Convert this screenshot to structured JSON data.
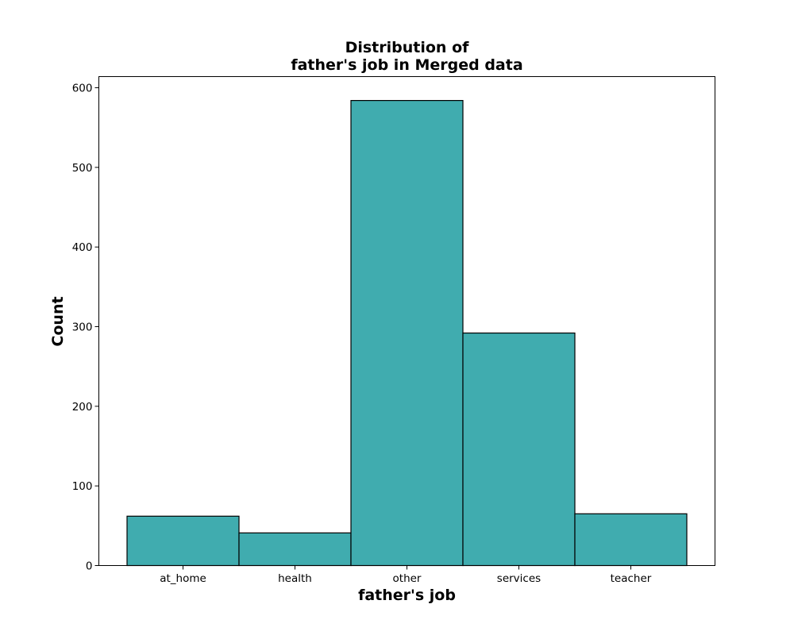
{
  "chart_data": {
    "type": "bar",
    "title_lines": [
      "Distribution of",
      "father's job in Merged data"
    ],
    "xlabel": "father's job",
    "ylabel": "Count",
    "categories": [
      "at_home",
      "health",
      "other",
      "services",
      "teacher"
    ],
    "values": [
      62,
      41,
      584,
      292,
      65
    ],
    "ylim": [
      0,
      614
    ],
    "yticks": [
      0,
      100,
      200,
      300,
      400,
      500,
      600
    ],
    "grid": false,
    "bar_color": "#40acaf",
    "bar_edge_color": "#000000"
  }
}
